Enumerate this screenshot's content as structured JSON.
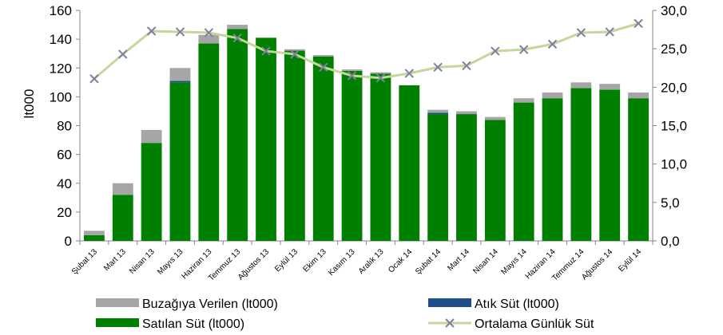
{
  "chart_data": {
    "type": "bar",
    "stacked": true,
    "categories": [
      "Şubat 13",
      "Mart 13",
      "Nisan 13",
      "Mayıs 13",
      "Haziran 13",
      "Temmuz 13",
      "Ağustos 13",
      "Eylül 13",
      "Ekim 13",
      "Kasım 13",
      "Aralık 13",
      "Ocak 14",
      "Şubat 14",
      "Mart 14",
      "Nisan 14",
      "Mayıs 14",
      "Haziran 14",
      "Temmuz 14",
      "Ağustos 14",
      "Eylül 14"
    ],
    "ylabel": "lt000",
    "ylim": [
      0,
      160
    ],
    "y_ticks": [
      0,
      20,
      40,
      60,
      80,
      100,
      120,
      140,
      160
    ],
    "y2lim": [
      0,
      30
    ],
    "y2_ticks": [
      "0,0",
      "5,0",
      "10,0",
      "15,0",
      "20,0",
      "25,0",
      "30,0"
    ],
    "grid": false,
    "legend_position": "bottom",
    "series": [
      {
        "name": "Satılan Süt (lt000)",
        "type": "bar",
        "axis": "left",
        "color": "#008000",
        "values": [
          4,
          32,
          68,
          110,
          137,
          147,
          141,
          132,
          128,
          118,
          116,
          108,
          88,
          88,
          84,
          96,
          99,
          106,
          105,
          99
        ]
      },
      {
        "name": "Atık Süt (lt000)",
        "type": "bar",
        "axis": "left",
        "color": "#1f4e8c",
        "values": [
          0,
          0,
          0,
          1,
          0,
          0,
          0,
          0,
          0,
          0,
          0,
          0,
          1,
          0,
          0,
          0,
          0,
          0,
          0,
          0
        ]
      },
      {
        "name": "Buzağıya Verilen (lt000)",
        "type": "bar",
        "axis": "left",
        "color": "#a6a6a6",
        "values": [
          3,
          8,
          9,
          9,
          6,
          3,
          0,
          1,
          1,
          1,
          1,
          0,
          2,
          2,
          2,
          3,
          4,
          4,
          4,
          4
        ]
      },
      {
        "name": "Ortalama Günlük Süt",
        "type": "line",
        "axis": "right",
        "color": "#c4d79b",
        "marker_color": "#7f7f9f",
        "values": [
          21.1,
          24.3,
          27.3,
          27.2,
          27.1,
          26.4,
          24.7,
          24.3,
          22.6,
          21.5,
          21.2,
          21.8,
          22.6,
          22.8,
          24.7,
          24.9,
          25.6,
          27.1,
          27.2,
          28.3
        ]
      }
    ]
  }
}
